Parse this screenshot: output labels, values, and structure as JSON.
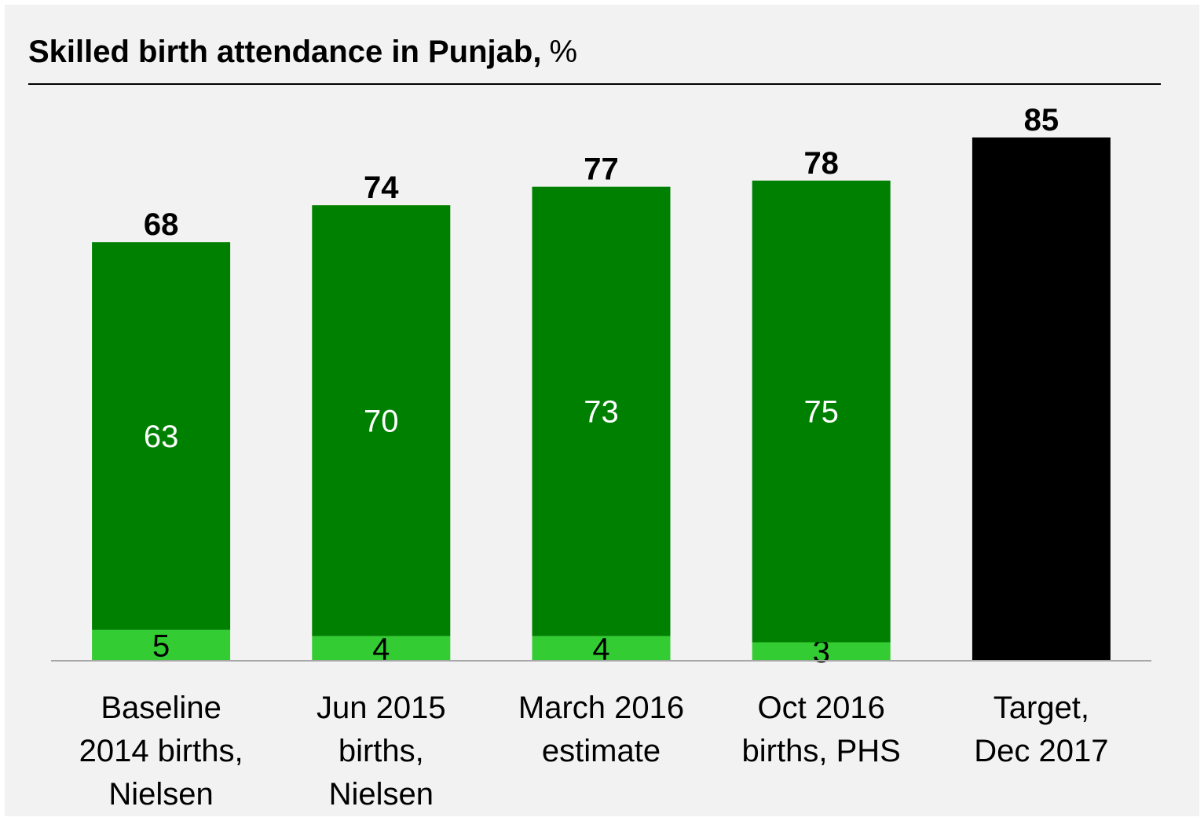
{
  "chart_data": {
    "type": "stacked_bar",
    "title": "Skilled birth attendance in Punjab,",
    "title_unit": "%",
    "categories": [
      [
        "Baseline",
        "2014 births,",
        "Nielsen"
      ],
      [
        "Jun 2015",
        "births,",
        "Nielsen"
      ],
      [
        "March 2016",
        "estimate"
      ],
      [
        "Oct 2016",
        "births, PHS"
      ],
      [
        "Target,",
        "Dec 2017"
      ]
    ],
    "series": [
      {
        "color": "#33cc33",
        "label_color": "#000000",
        "values": [
          5,
          4,
          4,
          3,
          null
        ]
      },
      {
        "color": "#008000",
        "label_color": "#ffffff",
        "values": [
          63,
          70,
          73,
          75,
          null
        ]
      },
      {
        "color": "#000000",
        "label_color": "#ffffff",
        "values": [
          null,
          null,
          null,
          null,
          85
        ]
      }
    ],
    "totals": [
      68,
      74,
      77,
      78,
      85
    ],
    "ylim": [
      0,
      85
    ]
  }
}
